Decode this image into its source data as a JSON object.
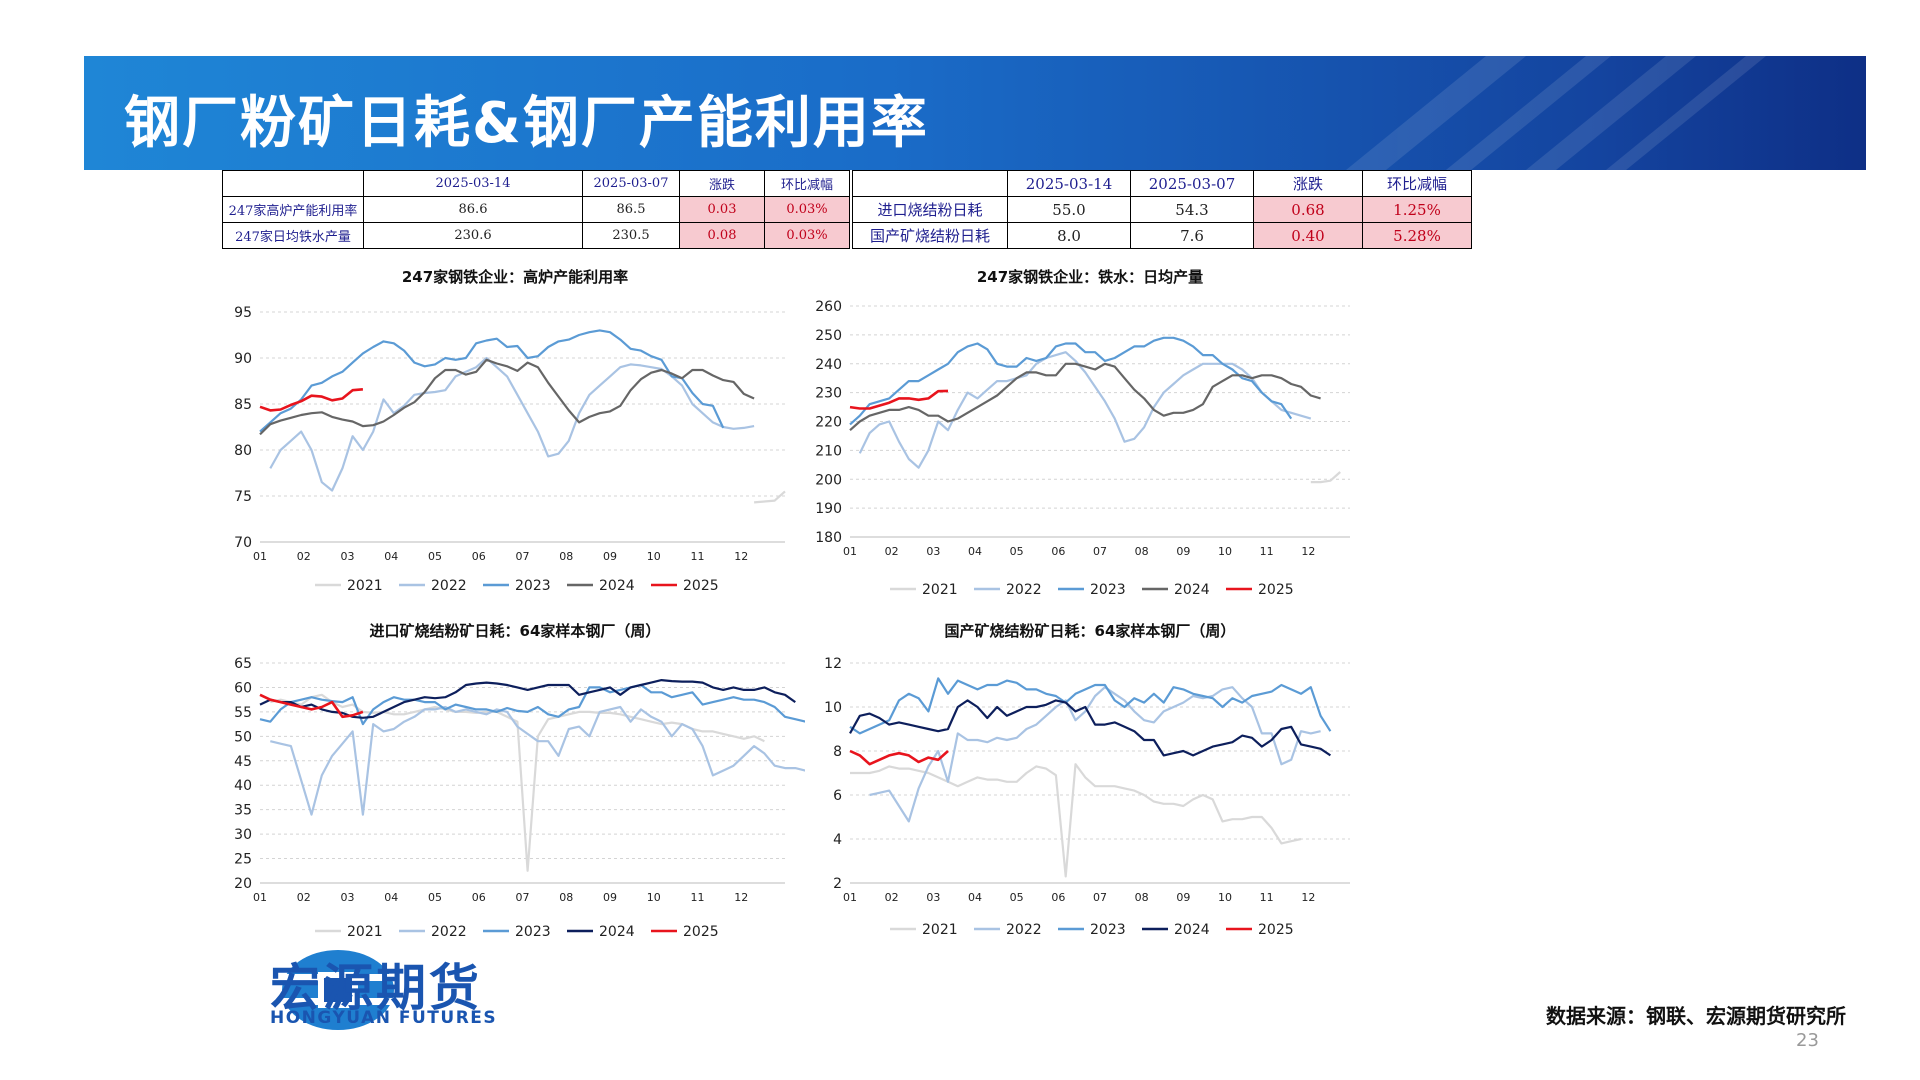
{
  "title": "钢厂粉矿日耗&钢厂产能利用率",
  "table1": {
    "headers": [
      "",
      "2025-03-14",
      "2025-03-07",
      "涨跌",
      "环比减幅"
    ],
    "rows": [
      {
        "label": "247家高炉产能利用率",
        "cur": "86.6",
        "prev": "86.5",
        "chg": "0.03",
        "pct": "0.03%"
      },
      {
        "label": "247家日均铁水产量",
        "cur": "230.6",
        "prev": "230.5",
        "chg": "0.08",
        "pct": "0.03%"
      }
    ]
  },
  "table2": {
    "headers": [
      "",
      "2025-03-14",
      "2025-03-07",
      "涨跌",
      "环比减幅"
    ],
    "rows": [
      {
        "label": "进口烧结粉日耗",
        "cur": "55.0",
        "prev": "54.3",
        "chg": "0.68",
        "pct": "1.25%"
      },
      {
        "label": "国产矿烧结粉日耗",
        "cur": "8.0",
        "prev": "7.6",
        "chg": "0.40",
        "pct": "5.28%"
      }
    ]
  },
  "colors": {
    "2021": "#d9d9d9",
    "2022": "#a9c3e3",
    "2023": "#5b9bd5",
    "2024_gray": "#666666",
    "2024_navy": "#0d1f5c",
    "2025": "#e8141d"
  },
  "chart_data": [
    {
      "id": "c1",
      "type": "line",
      "title": "247家钢铁企业：高炉产能利用率",
      "ylim": [
        70,
        95
      ],
      "yticks": [
        70,
        75,
        80,
        85,
        90,
        95
      ],
      "xticks": [
        "01",
        "02",
        "03",
        "04",
        "05",
        "06",
        "07",
        "08",
        "09",
        "10",
        "11",
        "12"
      ],
      "series": [
        {
          "name": "2021",
          "color": "#d9d9d9",
          "start": 48,
          "values": [
            74.3,
            74.4,
            74.5,
            75.5
          ]
        },
        {
          "name": "2022",
          "color": "#a9c3e3",
          "start": 1,
          "values": [
            78,
            80,
            81,
            82,
            80,
            76.5,
            75.6,
            78,
            81.5,
            80,
            82,
            85.5,
            84,
            84.8,
            86,
            86.2,
            86.3,
            86.5,
            88,
            88.5,
            89,
            90,
            89,
            88,
            86,
            84,
            82,
            79.3,
            79.6,
            81,
            84,
            86,
            87,
            88,
            89,
            89.3,
            89.2,
            89,
            88.8,
            88,
            87,
            85,
            84,
            83,
            82.5,
            82.3,
            82.4,
            82.6
          ]
        },
        {
          "name": "2023",
          "color": "#5b9bd5",
          "start": 0,
          "values": [
            82,
            83,
            84,
            84.5,
            85.5,
            87,
            87.3,
            88,
            88.5,
            89.5,
            90.5,
            91.2,
            91.8,
            91.6,
            90.8,
            89.5,
            89.1,
            89.3,
            90,
            89.8,
            90,
            91.6,
            91.9,
            92.1,
            91.2,
            91.3,
            90,
            90.2,
            91.2,
            91.8,
            92,
            92.5,
            92.8,
            93,
            92.8,
            92,
            91,
            90.8,
            90.2,
            89.8,
            88,
            87.8,
            86.2,
            85,
            84.8,
            82.4
          ]
        },
        {
          "name": "2024",
          "color": "#666666",
          "start": 0,
          "values": [
            81.7,
            82.8,
            83.2,
            83.5,
            83.8,
            84,
            84.1,
            83.6,
            83.3,
            83.1,
            82.6,
            82.7,
            83.1,
            83.8,
            84.6,
            85.2,
            86.3,
            87.8,
            88.7,
            88.7,
            88.2,
            88.5,
            89.8,
            89.4,
            89.1,
            88.6,
            89.5,
            89,
            87.3,
            85.8,
            84.3,
            83,
            83.6,
            84,
            84.2,
            84.8,
            86.5,
            87.7,
            88.4,
            88.7,
            88.3,
            87.8,
            88.7,
            88.7,
            88.1,
            87.6,
            87.4,
            86.1,
            85.6
          ]
        },
        {
          "name": "2025",
          "color": "#e8141d",
          "start": 0,
          "values": [
            84.7,
            84.3,
            84.4,
            84.9,
            85.3,
            85.9,
            85.8,
            85.4,
            85.6,
            86.5,
            86.6
          ]
        }
      ]
    },
    {
      "id": "c2",
      "type": "line",
      "title": "247家钢铁企业：铁水：日均产量",
      "ylim": [
        180,
        260
      ],
      "yticks": [
        180,
        190,
        200,
        210,
        220,
        230,
        240,
        250,
        260
      ],
      "xticks": [
        "01",
        "02",
        "03",
        "04",
        "05",
        "06",
        "07",
        "08",
        "09",
        "10",
        "11",
        "12"
      ],
      "series": [
        {
          "name": "2021",
          "color": "#d9d9d9",
          "start": 47,
          "values": [
            199,
            199,
            199.5,
            202.5
          ]
        },
        {
          "name": "2022",
          "color": "#a9c3e3",
          "start": 1,
          "values": [
            209,
            216,
            219,
            220,
            213,
            207,
            204,
            210,
            220,
            217,
            224,
            230,
            228,
            231,
            234,
            234,
            235,
            236,
            240,
            242,
            243,
            244,
            241,
            237,
            232,
            227,
            221,
            213,
            214,
            218,
            225,
            230,
            233,
            236,
            238,
            240,
            240,
            240,
            240,
            238,
            235,
            230,
            227,
            224,
            223,
            222,
            221
          ]
        },
        {
          "name": "2023",
          "color": "#5b9bd5",
          "start": 0,
          "values": [
            219,
            222,
            226,
            227,
            228,
            231,
            234,
            234,
            236,
            238,
            240,
            244,
            246,
            247,
            245,
            240,
            239,
            239,
            242,
            241,
            242,
            246,
            247,
            247,
            244,
            244,
            241,
            242,
            244,
            246,
            246,
            248,
            249,
            249,
            248,
            246,
            243,
            243,
            240,
            238,
            235,
            234,
            230,
            227,
            226,
            221
          ]
        },
        {
          "name": "2024",
          "color": "#666666",
          "start": 0,
          "values": [
            217,
            220,
            222,
            223,
            224,
            224,
            225,
            224,
            222,
            222,
            220,
            221,
            223,
            225,
            227,
            229,
            232,
            235,
            237,
            237,
            236,
            236,
            240,
            240,
            239,
            238,
            240,
            239,
            235,
            231,
            228,
            224,
            222,
            223,
            223,
            224,
            226,
            232,
            234,
            236,
            236,
            235,
            236,
            236,
            235,
            233,
            232,
            229,
            228
          ]
        },
        {
          "name": "2025",
          "color": "#e8141d",
          "start": 0,
          "values": [
            225,
            224.5,
            224.5,
            225.5,
            226.5,
            228,
            228,
            227.5,
            228,
            230.5,
            230.6
          ]
        }
      ]
    },
    {
      "id": "c3",
      "type": "line",
      "title": "进口矿烧结粉矿日耗：64家样本钢厂（周）",
      "ylim": [
        20,
        65
      ],
      "yticks": [
        20,
        25,
        30,
        35,
        40,
        45,
        50,
        55,
        60,
        65
      ],
      "xticks": [
        "01",
        "02",
        "03",
        "04",
        "05",
        "06",
        "07",
        "08",
        "09",
        "10",
        "11",
        "12"
      ],
      "series": [
        {
          "name": "2021",
          "color": "#d9d9d9",
          "start": 1,
          "values": [
            57,
            57.5,
            57,
            56.5,
            58,
            58.5,
            57,
            56,
            56.5,
            55,
            54.8,
            55,
            54.5,
            54.5,
            55,
            55.5,
            56,
            55.5,
            55,
            55,
            54.8,
            55,
            55,
            54,
            53,
            22.5,
            50,
            53.5,
            54,
            54.5,
            55,
            55,
            54.8,
            54.8,
            54.5,
            54,
            53.5,
            53,
            52.5,
            52.8,
            52.5,
            51.5,
            51,
            51,
            50.5,
            50,
            49.5,
            50,
            49
          ]
        },
        {
          "name": "2022",
          "color": "#a9c3e3",
          "start": 1,
          "values": [
            49,
            48.5,
            48,
            41,
            34,
            42,
            46,
            48.5,
            51,
            34,
            52.5,
            51,
            51.5,
            53,
            54,
            55.5,
            55.5,
            56,
            55,
            55.5,
            55,
            54.5,
            55.5,
            55,
            52,
            50.5,
            49,
            49,
            46,
            51.5,
            52,
            50,
            55,
            55.5,
            56,
            53,
            55.5,
            54,
            53,
            50,
            52.5,
            51.5,
            48,
            42,
            43,
            44,
            46,
            48,
            46.5,
            44,
            43.5,
            43.5,
            43
          ]
        },
        {
          "name": "2023",
          "color": "#5b9bd5",
          "start": 0,
          "values": [
            53.5,
            53,
            55.5,
            57,
            57.5,
            58,
            57.5,
            57.2,
            57,
            58,
            52.5,
            55.5,
            57,
            58,
            57.5,
            57.5,
            57,
            57,
            55.5,
            56.5,
            56,
            55.5,
            55.5,
            55,
            55.8,
            55.2,
            55,
            56,
            54.5,
            54,
            55.5,
            56,
            60,
            60,
            59,
            59.5,
            60,
            60.5,
            59,
            59,
            58,
            58.5,
            59,
            56.5,
            57,
            57.5,
            58,
            57.5,
            57.5,
            57,
            56,
            54,
            53.5,
            53
          ]
        },
        {
          "name": "2024",
          "color": "#0d1f5c",
          "start": 0,
          "values": [
            56.5,
            57.5,
            57,
            57,
            56,
            56.5,
            55.5,
            55,
            54.8,
            54,
            53.8,
            54,
            55,
            56,
            57,
            57.5,
            58,
            57.8,
            58,
            59,
            60.5,
            60.8,
            61,
            60.8,
            60.5,
            60,
            59.5,
            60,
            60.5,
            60.5,
            60.5,
            58.5,
            59,
            59.5,
            60,
            58.5,
            60,
            60.5,
            61,
            61.5,
            61.3,
            61.2,
            61.2,
            61,
            60,
            59.5,
            60,
            59.5,
            59.5,
            60,
            59,
            58.5,
            57
          ]
        },
        {
          "name": "2025",
          "color": "#e8141d",
          "start": 0,
          "values": [
            58.5,
            57.5,
            57,
            56.5,
            56,
            55.5,
            56,
            57,
            54,
            54.3,
            55
          ]
        }
      ]
    },
    {
      "id": "c4",
      "type": "line",
      "title": "国产矿烧结粉矿日耗：64家样本钢厂（周）",
      "ylim": [
        2,
        12
      ],
      "yticks": [
        2,
        4,
        6,
        8,
        10,
        12
      ],
      "xticks": [
        "01",
        "02",
        "03",
        "04",
        "05",
        "06",
        "07",
        "08",
        "09",
        "10",
        "11",
        "12"
      ],
      "series": [
        {
          "name": "2021",
          "color": "#d9d9d9",
          "start": 0,
          "values": [
            7,
            7,
            7,
            7.1,
            7.3,
            7.2,
            7.2,
            7.1,
            7.0,
            6.8,
            6.6,
            6.4,
            6.6,
            6.8,
            6.7,
            6.7,
            6.6,
            6.6,
            7,
            7.3,
            7.2,
            6.9,
            2.3,
            7.4,
            6.8,
            6.4,
            6.4,
            6.4,
            6.3,
            6.2,
            6,
            5.7,
            5.6,
            5.6,
            5.5,
            5.8,
            6,
            5.8,
            4.8,
            4.9,
            4.9,
            5,
            5,
            4.5,
            3.8,
            3.9,
            4
          ]
        },
        {
          "name": "2022",
          "color": "#a9c3e3",
          "start": 2,
          "values": [
            6,
            6.1,
            6.2,
            5.5,
            4.8,
            6.3,
            7.3,
            8,
            6.6,
            8.8,
            8.5,
            8.5,
            8.4,
            8.6,
            8.5,
            8.6,
            9,
            9.2,
            9.6,
            10,
            10.3,
            9.4,
            9.8,
            10.5,
            10.9,
            10.6,
            10.3,
            9.8,
            9.4,
            9.3,
            9.8,
            10,
            10.2,
            10.5,
            10.4,
            10.5,
            10.8,
            10.9,
            10.4,
            10,
            8.8,
            8.8,
            7.4,
            7.6,
            8.9,
            8.8,
            8.9
          ]
        },
        {
          "name": "2023",
          "color": "#5b9bd5",
          "start": 0,
          "values": [
            9.1,
            8.8,
            9.0,
            9.2,
            9.4,
            10.3,
            10.6,
            10.4,
            9.8,
            11.3,
            10.6,
            11.2,
            11,
            10.8,
            11,
            11,
            11.2,
            11.1,
            10.8,
            10.8,
            10.6,
            10.5,
            10.2,
            10.6,
            10.8,
            11,
            11,
            10.3,
            10,
            10.4,
            10.2,
            10.6,
            10.2,
            10.9,
            10.8,
            10.6,
            10.5,
            10.4,
            10,
            10.4,
            10.2,
            10.5,
            10.6,
            10.7,
            11,
            10.8,
            10.6,
            10.9,
            9.6,
            8.9
          ]
        },
        {
          "name": "2024",
          "color": "#0d1f5c",
          "start": 0,
          "values": [
            8.8,
            9.6,
            9.7,
            9.5,
            9.2,
            9.3,
            9.2,
            9.1,
            9,
            8.9,
            9,
            10,
            10.3,
            10,
            9.5,
            10,
            9.6,
            9.8,
            10,
            10,
            10.1,
            10.3,
            10.2,
            9.8,
            10,
            9.2,
            9.2,
            9.3,
            9.1,
            8.9,
            8.5,
            8.5,
            7.8,
            7.9,
            8,
            7.8,
            8,
            8.2,
            8.3,
            8.4,
            8.7,
            8.6,
            8.2,
            8.5,
            9,
            9.1,
            8.3,
            8.2,
            8.1,
            7.8
          ]
        },
        {
          "name": "2025",
          "color": "#e8141d",
          "start": 0,
          "values": [
            8,
            7.8,
            7.4,
            7.6,
            7.8,
            7.9,
            7.8,
            7.5,
            7.7,
            7.6,
            8
          ]
        }
      ]
    }
  ],
  "source": "数据来源：钢联、宏源期货研究所",
  "page_number": "23",
  "logo": {
    "cn": "宏源期货",
    "en": "HONGYUAN FUTURES"
  }
}
